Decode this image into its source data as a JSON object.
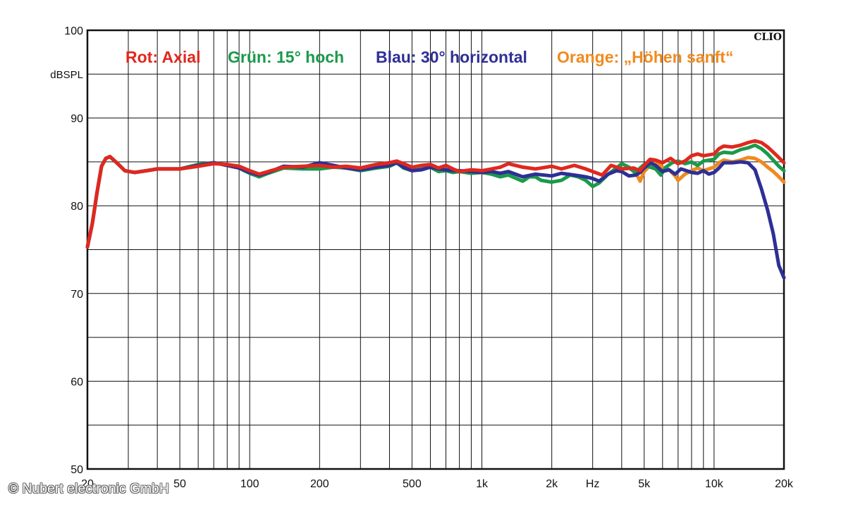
{
  "chart_data": {
    "type": "line",
    "title": "",
    "brand_badge": "CLIO",
    "ylabel": "dBSPL",
    "xlabel": "Hz",
    "x_scale": "log",
    "xlim": [
      20,
      20000
    ],
    "ylim": [
      50,
      100
    ],
    "grid": true,
    "y_ticks": [
      {
        "value": 100,
        "label": "100"
      },
      {
        "value": 90,
        "label": "90"
      },
      {
        "value": 80,
        "label": "80"
      },
      {
        "value": 70,
        "label": "70"
      },
      {
        "value": 60,
        "label": "60"
      },
      {
        "value": 50,
        "label": "50"
      }
    ],
    "x_ticks": [
      {
        "value": 20,
        "label": "20"
      },
      {
        "value": 50,
        "label": "50"
      },
      {
        "value": 100,
        "label": "100"
      },
      {
        "value": 200,
        "label": "200"
      },
      {
        "value": 500,
        "label": "500"
      },
      {
        "value": 1000,
        "label": "1k"
      },
      {
        "value": 2000,
        "label": "2k"
      },
      {
        "value": 3000,
        "label": "Hz"
      },
      {
        "value": 5000,
        "label": "5k"
      },
      {
        "value": 10000,
        "label": "10k"
      },
      {
        "value": 20000,
        "label": "20k"
      }
    ],
    "legend_placement": "top",
    "series": [
      {
        "name": "Rot: Axial",
        "color": "#e0281e",
        "points": [
          [
            20,
            75.3
          ],
          [
            21,
            78
          ],
          [
            22,
            81.5
          ],
          [
            23,
            84.5
          ],
          [
            24,
            85.4
          ],
          [
            25,
            85.6
          ],
          [
            27,
            84.8
          ],
          [
            29,
            84.0
          ],
          [
            32,
            83.8
          ],
          [
            36,
            84.0
          ],
          [
            40,
            84.2
          ],
          [
            50,
            84.2
          ],
          [
            60,
            84.5
          ],
          [
            70,
            84.8
          ],
          [
            80,
            84.7
          ],
          [
            90,
            84.5
          ],
          [
            100,
            84.0
          ],
          [
            110,
            83.6
          ],
          [
            120,
            83.9
          ],
          [
            140,
            84.4
          ],
          [
            170,
            84.5
          ],
          [
            200,
            84.6
          ],
          [
            230,
            84.4
          ],
          [
            260,
            84.5
          ],
          [
            300,
            84.3
          ],
          [
            350,
            84.7
          ],
          [
            400,
            84.9
          ],
          [
            430,
            85.1
          ],
          [
            460,
            84.8
          ],
          [
            500,
            84.4
          ],
          [
            550,
            84.6
          ],
          [
            600,
            84.7
          ],
          [
            650,
            84.3
          ],
          [
            700,
            84.6
          ],
          [
            750,
            84.2
          ],
          [
            800,
            83.9
          ],
          [
            900,
            84.1
          ],
          [
            1000,
            84.0
          ],
          [
            1100,
            84.2
          ],
          [
            1200,
            84.4
          ],
          [
            1300,
            84.8
          ],
          [
            1500,
            84.4
          ],
          [
            1700,
            84.2
          ],
          [
            2000,
            84.5
          ],
          [
            2200,
            84.2
          ],
          [
            2500,
            84.6
          ],
          [
            2800,
            84.2
          ],
          [
            3000,
            83.9
          ],
          [
            3300,
            83.5
          ],
          [
            3600,
            84.6
          ],
          [
            4000,
            84.2
          ],
          [
            4500,
            84.3
          ],
          [
            4800,
            84.0
          ],
          [
            5000,
            84.6
          ],
          [
            5300,
            85.3
          ],
          [
            5600,
            85.2
          ],
          [
            6000,
            84.9
          ],
          [
            6500,
            85.4
          ],
          [
            7000,
            84.8
          ],
          [
            7500,
            85.1
          ],
          [
            8000,
            85.7
          ],
          [
            8500,
            85.9
          ],
          [
            9000,
            85.7
          ],
          [
            10000,
            85.9
          ],
          [
            10500,
            86.5
          ],
          [
            11000,
            86.8
          ],
          [
            12000,
            86.7
          ],
          [
            13000,
            86.9
          ],
          [
            14000,
            87.2
          ],
          [
            15000,
            87.4
          ],
          [
            16000,
            87.2
          ],
          [
            17000,
            86.7
          ],
          [
            18000,
            86.1
          ],
          [
            19000,
            85.5
          ],
          [
            20000,
            84.9
          ]
        ]
      },
      {
        "name": "Grün: 15° hoch",
        "color": "#1a9a4a",
        "points": [
          [
            20,
            75.3
          ],
          [
            21,
            78
          ],
          [
            22,
            81.5
          ],
          [
            23,
            84.5
          ],
          [
            24,
            85.4
          ],
          [
            25,
            85.6
          ],
          [
            27,
            84.8
          ],
          [
            29,
            84.0
          ],
          [
            32,
            83.8
          ],
          [
            36,
            84.0
          ],
          [
            40,
            84.2
          ],
          [
            50,
            84.2
          ],
          [
            60,
            84.7
          ],
          [
            70,
            84.9
          ],
          [
            80,
            84.6
          ],
          [
            90,
            84.3
          ],
          [
            100,
            83.7
          ],
          [
            110,
            83.3
          ],
          [
            120,
            83.7
          ],
          [
            140,
            84.3
          ],
          [
            170,
            84.2
          ],
          [
            200,
            84.2
          ],
          [
            230,
            84.4
          ],
          [
            260,
            84.3
          ],
          [
            300,
            84.0
          ],
          [
            350,
            84.3
          ],
          [
            400,
            84.5
          ],
          [
            430,
            84.9
          ],
          [
            460,
            84.3
          ],
          [
            500,
            84.0
          ],
          [
            550,
            84.2
          ],
          [
            600,
            84.4
          ],
          [
            650,
            83.9
          ],
          [
            700,
            84.0
          ],
          [
            750,
            83.8
          ],
          [
            800,
            83.9
          ],
          [
            900,
            83.7
          ],
          [
            1000,
            83.8
          ],
          [
            1100,
            83.6
          ],
          [
            1200,
            83.3
          ],
          [
            1300,
            83.5
          ],
          [
            1500,
            82.8
          ],
          [
            1600,
            83.3
          ],
          [
            1700,
            83.3
          ],
          [
            1800,
            82.9
          ],
          [
            2000,
            82.7
          ],
          [
            2200,
            82.9
          ],
          [
            2400,
            83.5
          ],
          [
            2600,
            83.3
          ],
          [
            2800,
            82.9
          ],
          [
            3000,
            82.2
          ],
          [
            3200,
            82.6
          ],
          [
            3500,
            83.6
          ],
          [
            3800,
            84.3
          ],
          [
            4000,
            84.8
          ],
          [
            4300,
            84.4
          ],
          [
            4600,
            83.7
          ],
          [
            4800,
            84.3
          ],
          [
            5000,
            84.7
          ],
          [
            5300,
            84.4
          ],
          [
            5600,
            84.2
          ],
          [
            5900,
            83.5
          ],
          [
            6200,
            84.4
          ],
          [
            6600,
            84.9
          ],
          [
            7000,
            85.1
          ],
          [
            7500,
            84.8
          ],
          [
            8000,
            85.0
          ],
          [
            8500,
            84.6
          ],
          [
            9000,
            85.1
          ],
          [
            10000,
            85.3
          ],
          [
            10500,
            85.9
          ],
          [
            11000,
            86.1
          ],
          [
            12000,
            86.0
          ],
          [
            13000,
            86.4
          ],
          [
            14000,
            86.6
          ],
          [
            15000,
            86.9
          ],
          [
            16000,
            86.5
          ],
          [
            17000,
            85.9
          ],
          [
            18000,
            85.2
          ],
          [
            19000,
            84.5
          ],
          [
            20000,
            84.0
          ]
        ]
      },
      {
        "name": "Blau: 30° horizontal",
        "color": "#2e2f95",
        "points": [
          [
            20,
            75.3
          ],
          [
            21,
            78
          ],
          [
            22,
            81.5
          ],
          [
            23,
            84.5
          ],
          [
            24,
            85.4
          ],
          [
            25,
            85.6
          ],
          [
            27,
            84.8
          ],
          [
            29,
            84.0
          ],
          [
            32,
            83.8
          ],
          [
            36,
            84.0
          ],
          [
            40,
            84.2
          ],
          [
            50,
            84.2
          ],
          [
            60,
            84.6
          ],
          [
            70,
            84.9
          ],
          [
            80,
            84.6
          ],
          [
            90,
            84.3
          ],
          [
            100,
            83.8
          ],
          [
            110,
            83.5
          ],
          [
            120,
            83.8
          ],
          [
            140,
            84.5
          ],
          [
            170,
            84.4
          ],
          [
            200,
            84.9
          ],
          [
            230,
            84.6
          ],
          [
            260,
            84.3
          ],
          [
            300,
            84.1
          ],
          [
            350,
            84.4
          ],
          [
            400,
            84.6
          ],
          [
            430,
            84.9
          ],
          [
            460,
            84.4
          ],
          [
            500,
            84.0
          ],
          [
            550,
            84.1
          ],
          [
            600,
            84.4
          ],
          [
            650,
            84.2
          ],
          [
            700,
            84.1
          ],
          [
            750,
            84.0
          ],
          [
            800,
            84.0
          ],
          [
            900,
            83.9
          ],
          [
            1000,
            83.8
          ],
          [
            1100,
            83.9
          ],
          [
            1200,
            83.7
          ],
          [
            1300,
            83.9
          ],
          [
            1500,
            83.3
          ],
          [
            1700,
            83.6
          ],
          [
            2000,
            83.4
          ],
          [
            2200,
            83.7
          ],
          [
            2500,
            83.5
          ],
          [
            2800,
            83.3
          ],
          [
            3000,
            83.1
          ],
          [
            3200,
            82.8
          ],
          [
            3500,
            83.6
          ],
          [
            3800,
            84.0
          ],
          [
            4000,
            83.9
          ],
          [
            4300,
            83.4
          ],
          [
            4600,
            83.5
          ],
          [
            4800,
            83.8
          ],
          [
            5000,
            84.3
          ],
          [
            5300,
            84.9
          ],
          [
            5600,
            84.6
          ],
          [
            6000,
            83.9
          ],
          [
            6400,
            84.1
          ],
          [
            6800,
            83.6
          ],
          [
            7200,
            84.2
          ],
          [
            7600,
            84.0
          ],
          [
            8000,
            83.8
          ],
          [
            8500,
            83.7
          ],
          [
            9000,
            84.0
          ],
          [
            9500,
            83.6
          ],
          [
            10000,
            83.8
          ],
          [
            10500,
            84.3
          ],
          [
            11000,
            84.9
          ],
          [
            12000,
            84.9
          ],
          [
            13000,
            85.0
          ],
          [
            14000,
            84.9
          ],
          [
            15000,
            84.1
          ],
          [
            16000,
            81.9
          ],
          [
            17000,
            79.5
          ],
          [
            18000,
            76.8
          ],
          [
            19000,
            73.2
          ],
          [
            20000,
            71.8
          ]
        ]
      },
      {
        "name": "Orange: „Höhen sanft“",
        "color": "#f08a1e",
        "points": [
          [
            4000,
            84.2
          ],
          [
            4300,
            84.3
          ],
          [
            4600,
            83.8
          ],
          [
            4800,
            82.8
          ],
          [
            5000,
            83.9
          ],
          [
            5300,
            84.6
          ],
          [
            5600,
            84.9
          ],
          [
            6000,
            84.4
          ],
          [
            6400,
            84.1
          ],
          [
            6800,
            83.4
          ],
          [
            7000,
            82.9
          ],
          [
            7500,
            83.6
          ],
          [
            8000,
            84.0
          ],
          [
            8500,
            84.3
          ],
          [
            9000,
            84.0
          ],
          [
            10000,
            84.4
          ],
          [
            10500,
            84.9
          ],
          [
            11000,
            85.2
          ],
          [
            12000,
            85.0
          ],
          [
            13000,
            85.2
          ],
          [
            14000,
            85.5
          ],
          [
            15000,
            85.4
          ],
          [
            16000,
            85.0
          ],
          [
            17000,
            84.4
          ],
          [
            18000,
            83.9
          ],
          [
            19000,
            83.3
          ],
          [
            20000,
            82.7
          ]
        ]
      }
    ]
  },
  "footer": {
    "copyright": "© Nubert electronic GmbH"
  }
}
